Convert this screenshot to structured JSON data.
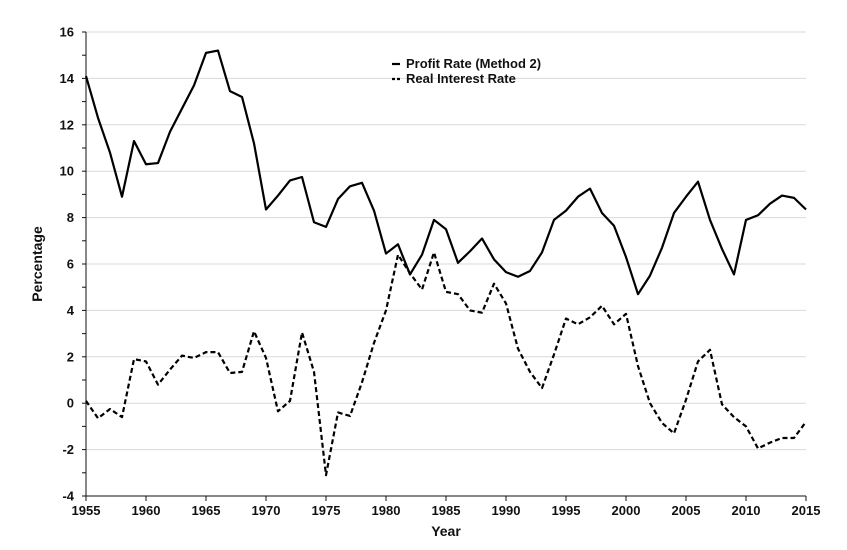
{
  "chart_data": {
    "type": "line",
    "title": "",
    "xlabel": "Year",
    "ylabel": "Percentage",
    "xlim": [
      1955,
      2015
    ],
    "ylim": [
      -4,
      16
    ],
    "x_ticks": [
      "1955",
      "1960",
      "1965",
      "1970",
      "1975",
      "1980",
      "1985",
      "1990",
      "1995",
      "2000",
      "2005",
      "2010",
      "2015"
    ],
    "y_ticks": [
      "16",
      "14",
      "12",
      "10",
      "8",
      "6",
      "4",
      "2",
      "0",
      "-2",
      "-4"
    ],
    "grid": "horizontal",
    "legend_position": "top-center",
    "x": [
      1955,
      1956,
      1957,
      1958,
      1959,
      1960,
      1961,
      1962,
      1963,
      1964,
      1965,
      1966,
      1967,
      1968,
      1969,
      1970,
      1971,
      1972,
      1973,
      1974,
      1975,
      1976,
      1977,
      1978,
      1979,
      1980,
      1981,
      1982,
      1983,
      1984,
      1985,
      1986,
      1987,
      1988,
      1989,
      1990,
      1991,
      1992,
      1993,
      1994,
      1995,
      1996,
      1997,
      1998,
      1999,
      2000,
      2001,
      2002,
      2003,
      2004,
      2005,
      2006,
      2007,
      2008,
      2009,
      2010,
      2011,
      2012,
      2013,
      2014,
      2015
    ],
    "series": [
      {
        "name": "Profit Rate (Method 2)",
        "style": "solid",
        "color": "#000000",
        "values": [
          14.1,
          12.3,
          10.8,
          8.9,
          11.3,
          10.3,
          10.35,
          11.7,
          12.7,
          13.7,
          15.1,
          15.2,
          13.45,
          13.2,
          11.2,
          8.35,
          8.95,
          9.6,
          9.75,
          7.8,
          7.6,
          8.8,
          9.35,
          9.5,
          8.3,
          6.45,
          6.85,
          5.55,
          6.4,
          7.9,
          7.5,
          6.05,
          6.55,
          7.1,
          6.2,
          5.65,
          5.45,
          5.7,
          6.5,
          7.9,
          8.3,
          8.9,
          9.25,
          8.2,
          7.65,
          6.3,
          4.7,
          5.5,
          6.7,
          8.2,
          8.9,
          9.55,
          7.9,
          6.65,
          5.55,
          7.9,
          8.1,
          8.6,
          8.95,
          8.85,
          8.35
        ]
      },
      {
        "name": "Real Interest Rate",
        "style": "dashed",
        "color": "#000000",
        "values": [
          0.1,
          -0.65,
          -0.25,
          -0.6,
          1.9,
          1.8,
          0.8,
          1.45,
          2.05,
          1.95,
          2.2,
          2.2,
          1.3,
          1.35,
          3.1,
          1.95,
          -0.35,
          0.1,
          3.05,
          1.35,
          -3.1,
          -0.4,
          -0.55,
          0.9,
          2.6,
          4.0,
          6.4,
          5.6,
          4.9,
          6.5,
          4.8,
          4.7,
          4.0,
          3.9,
          5.15,
          4.3,
          2.35,
          1.35,
          0.65,
          2.1,
          3.65,
          3.4,
          3.7,
          4.2,
          3.4,
          3.85,
          1.6,
          0.0,
          -0.85,
          -1.3,
          0.15,
          1.8,
          2.3,
          -0.05,
          -0.6,
          -1.0,
          -1.95,
          -1.7,
          -1.5,
          -1.5,
          -0.8
        ]
      }
    ]
  }
}
